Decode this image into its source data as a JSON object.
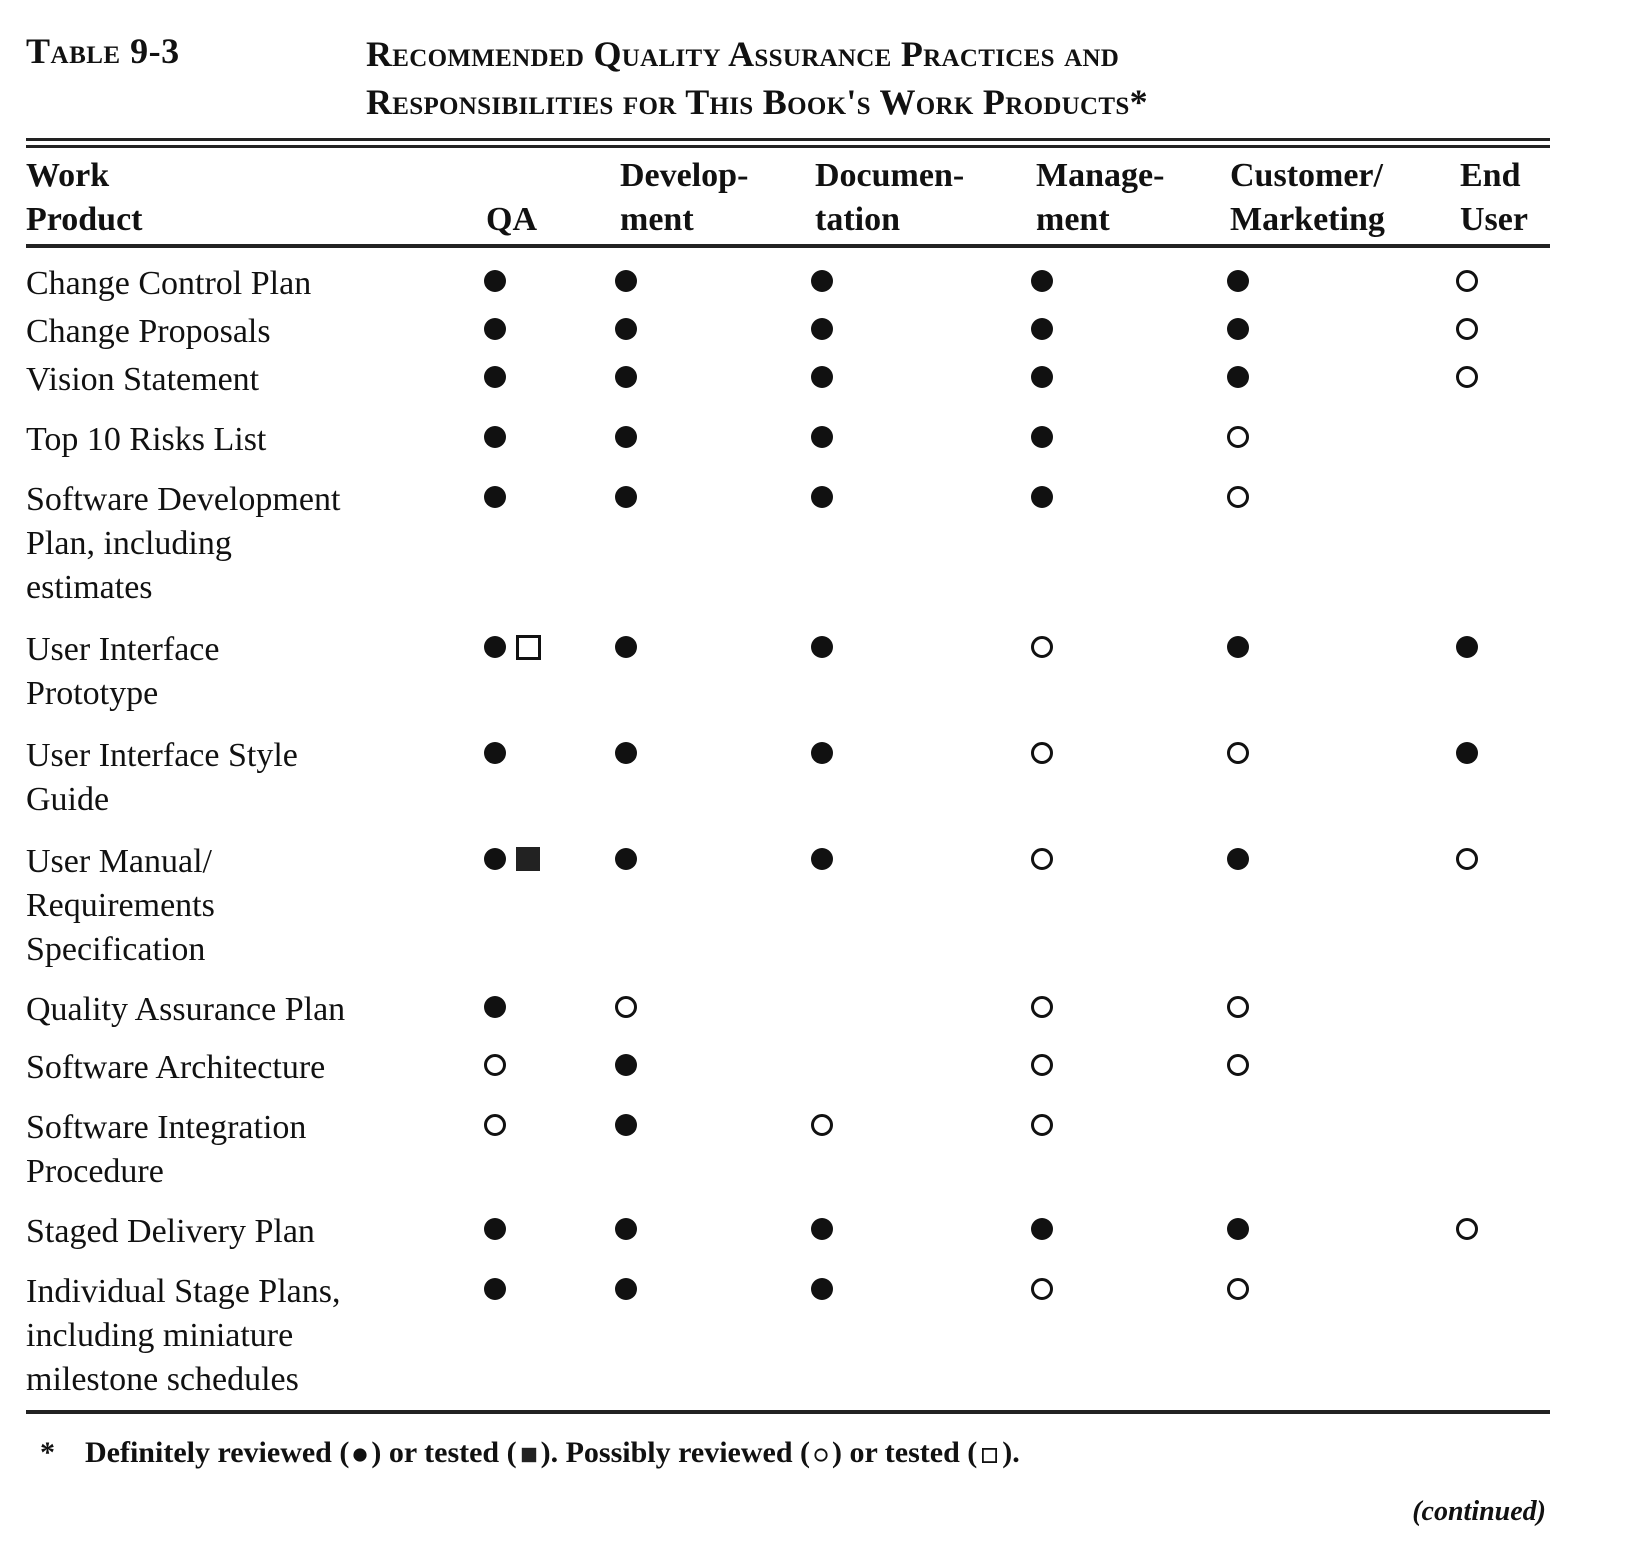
{
  "table_number": "Table 9-3",
  "title_lines": [
    "Recommended Quality Assurance Practices and",
    "Responsibilities for This Book's Work Products*"
  ],
  "columns": [
    {
      "lines": [
        "Work",
        "Product"
      ]
    },
    {
      "lines": [
        "",
        "QA"
      ]
    },
    {
      "lines": [
        "Develop-",
        "ment"
      ]
    },
    {
      "lines": [
        "Documen-",
        "tation"
      ]
    },
    {
      "lines": [
        "Manage-",
        "ment"
      ]
    },
    {
      "lines": [
        "Customer/",
        "Marketing"
      ]
    },
    {
      "lines": [
        "End",
        "User"
      ]
    }
  ],
  "symbol_legend": {
    "definitely_reviewed": "filled-circle",
    "definitely_tested": "filled-square",
    "possibly_reviewed": "open-circle",
    "possibly_tested": "open-square"
  },
  "rows": [
    {
      "label": [
        "Change Control Plan"
      ],
      "cells": [
        [
          "definitely_reviewed"
        ],
        [
          "definitely_reviewed"
        ],
        [
          "definitely_reviewed"
        ],
        [
          "definitely_reviewed"
        ],
        [
          "definitely_reviewed"
        ],
        [
          "possibly_reviewed"
        ]
      ]
    },
    {
      "label": [
        "Change Proposals"
      ],
      "cells": [
        [
          "definitely_reviewed"
        ],
        [
          "definitely_reviewed"
        ],
        [
          "definitely_reviewed"
        ],
        [
          "definitely_reviewed"
        ],
        [
          "definitely_reviewed"
        ],
        [
          "possibly_reviewed"
        ]
      ]
    },
    {
      "label": [
        "Vision Statement"
      ],
      "cells": [
        [
          "definitely_reviewed"
        ],
        [
          "definitely_reviewed"
        ],
        [
          "definitely_reviewed"
        ],
        [
          "definitely_reviewed"
        ],
        [
          "definitely_reviewed"
        ],
        [
          "possibly_reviewed"
        ]
      ]
    },
    {
      "label": [
        "Top 10 Risks List"
      ],
      "cells": [
        [
          "definitely_reviewed"
        ],
        [
          "definitely_reviewed"
        ],
        [
          "definitely_reviewed"
        ],
        [
          "definitely_reviewed"
        ],
        [
          "possibly_reviewed"
        ],
        []
      ]
    },
    {
      "label": [
        "Software Development",
        "Plan, including",
        "estimates"
      ],
      "cells": [
        [
          "definitely_reviewed"
        ],
        [
          "definitely_reviewed"
        ],
        [
          "definitely_reviewed"
        ],
        [
          "definitely_reviewed"
        ],
        [
          "possibly_reviewed"
        ],
        []
      ]
    },
    {
      "label": [
        "User Interface",
        "Prototype"
      ],
      "cells": [
        [
          "definitely_reviewed",
          "possibly_tested"
        ],
        [
          "definitely_reviewed"
        ],
        [
          "definitely_reviewed"
        ],
        [
          "possibly_reviewed"
        ],
        [
          "definitely_reviewed"
        ],
        [
          "definitely_reviewed"
        ]
      ]
    },
    {
      "label": [
        "User Interface Style",
        "Guide"
      ],
      "cells": [
        [
          "definitely_reviewed"
        ],
        [
          "definitely_reviewed"
        ],
        [
          "definitely_reviewed"
        ],
        [
          "possibly_reviewed"
        ],
        [
          "possibly_reviewed"
        ],
        [
          "definitely_reviewed"
        ]
      ]
    },
    {
      "label": [
        "User Manual/",
        "Requirements",
        "Specification"
      ],
      "cells": [
        [
          "definitely_reviewed",
          "definitely_tested"
        ],
        [
          "definitely_reviewed"
        ],
        [
          "definitely_reviewed"
        ],
        [
          "possibly_reviewed"
        ],
        [
          "definitely_reviewed"
        ],
        [
          "possibly_reviewed"
        ]
      ]
    },
    {
      "label": [
        "Quality Assurance Plan"
      ],
      "cells": [
        [
          "definitely_reviewed"
        ],
        [
          "possibly_reviewed"
        ],
        [],
        [
          "possibly_reviewed"
        ],
        [
          "possibly_reviewed"
        ],
        []
      ]
    },
    {
      "label": [
        "Software Architecture"
      ],
      "cells": [
        [
          "possibly_reviewed"
        ],
        [
          "definitely_reviewed"
        ],
        [],
        [
          "possibly_reviewed"
        ],
        [
          "possibly_reviewed"
        ],
        []
      ]
    },
    {
      "label": [
        "Software Integration",
        "Procedure"
      ],
      "cells": [
        [
          "possibly_reviewed"
        ],
        [
          "definitely_reviewed"
        ],
        [
          "possibly_reviewed"
        ],
        [
          "possibly_reviewed"
        ],
        [],
        []
      ]
    },
    {
      "label": [
        "Staged Delivery Plan"
      ],
      "cells": [
        [
          "definitely_reviewed"
        ],
        [
          "definitely_reviewed"
        ],
        [
          "definitely_reviewed"
        ],
        [
          "definitely_reviewed"
        ],
        [
          "definitely_reviewed"
        ],
        [
          "possibly_reviewed"
        ]
      ]
    },
    {
      "label": [
        "Individual Stage Plans,",
        "including miniature",
        "milestone schedules"
      ],
      "cells": [
        [
          "definitely_reviewed"
        ],
        [
          "definitely_reviewed"
        ],
        [
          "definitely_reviewed"
        ],
        [
          "possibly_reviewed"
        ],
        [
          "possibly_reviewed"
        ],
        []
      ]
    }
  ],
  "footnote": {
    "marker": "*",
    "parts": [
      "Definitely reviewed (",
      ") or tested (",
      "). Possibly reviewed (",
      ") or tested (",
      ")."
    ]
  },
  "continued": "(continued)"
}
